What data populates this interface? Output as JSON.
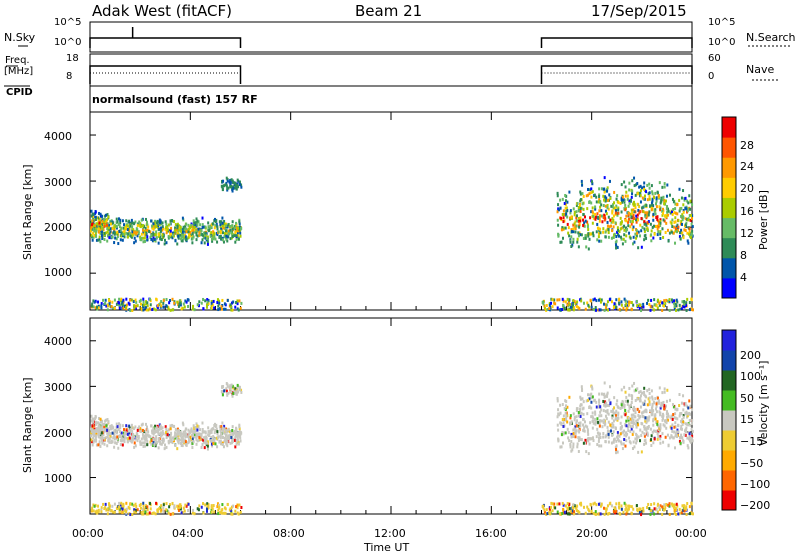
{
  "header": {
    "station": "Adak West (fitACF)",
    "beam": "Beam 21",
    "date": "17/Sep/2015"
  },
  "panels": {
    "nsky_label": "N.Sky",
    "nsky_ticks": [
      "10^5",
      "10^0"
    ],
    "nsearch_label": "N.Search",
    "nsearch_ticks": [
      "10^5",
      "10^0"
    ],
    "freq_label_1": "Freq.",
    "freq_label_2": "[MHz]",
    "freq_ticks": [
      "18",
      "8"
    ],
    "nave_label": "Nave",
    "nave_ticks": [
      "60",
      "0"
    ],
    "cpid_label": "CPID",
    "cpid_text": "normalsound (fast) 157 RF"
  },
  "colors": {
    "power": [
      "#0000ff",
      "#0055aa",
      "#2e8b57",
      "#66bb66",
      "#aacc00",
      "#ffcc00",
      "#ff9900",
      "#ff5500",
      "#ee0000"
    ],
    "velocity": [
      "#ee0000",
      "#ff6600",
      "#ffaa00",
      "#eecc33",
      "#c8c8c0",
      "#44bb22",
      "#226622",
      "#1144aa",
      "#2222dd"
    ]
  },
  "chart_data": [
    {
      "type": "heatmap",
      "name": "power",
      "ylabel": "Slant Range [km]",
      "yticks": [
        "1000",
        "2000",
        "3000",
        "4000"
      ],
      "ylim": [
        200,
        4500
      ],
      "xlim": [
        0,
        24
      ],
      "colorbar_label": "Power [dB]",
      "colorbar_ticks": [
        "4",
        "8",
        "12",
        "16",
        "20",
        "24",
        "28"
      ],
      "data_intervals_hours": [
        [
          0,
          6
        ],
        [
          18,
          24
        ]
      ],
      "echo_regions": [
        {
          "t": [
            0,
            6
          ],
          "range_km": [
            1600,
            2300
          ],
          "peak_db": 24
        },
        {
          "t": [
            5.3,
            6
          ],
          "range_km": [
            2800,
            3100
          ],
          "peak_db": 8
        },
        {
          "t": [
            18.5,
            24
          ],
          "range_km": [
            1500,
            3000
          ],
          "peak_db": 28
        }
      ]
    },
    {
      "type": "heatmap",
      "name": "velocity",
      "ylabel": "Slant Range [km]",
      "yticks": [
        "1000",
        "2000",
        "3000",
        "4000"
      ],
      "ylim": [
        200,
        4500
      ],
      "xlim": [
        0,
        24
      ],
      "colorbar_label": "Velocity [m s⁻¹]",
      "colorbar_ticks": [
        "200",
        "100",
        "50",
        "15",
        "−15",
        "−50",
        "−100",
        "−200"
      ],
      "data_intervals_hours": [
        [
          0,
          6
        ],
        [
          18,
          24
        ]
      ]
    }
  ],
  "xaxis": {
    "label": "Time UT",
    "ticks": [
      "00:00",
      "04:00",
      "08:00",
      "12:00",
      "16:00",
      "20:00",
      "00:00"
    ]
  }
}
